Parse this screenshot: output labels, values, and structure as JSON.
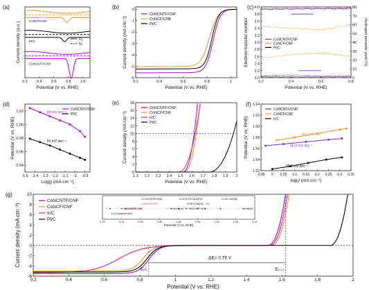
{
  "colors": {
    "purple": "#b000e0",
    "orange": "#e8952a",
    "black": "#000000",
    "magenta": "#e0207a",
    "gray": "#4a4a4a",
    "green": "#2e8b2e",
    "violet": "#7030d0"
  },
  "chart_data": [
    {
      "id": "a",
      "panel_label": "(a)",
      "type": "line",
      "xlabel": "Potential (V vs. RHE)",
      "ylabel": "Current density (a.u.)",
      "xlim": [
        0.2,
        1.1
      ],
      "xticks": [
        "0.2",
        "0.4",
        "0.6",
        "0.8",
        "1.0"
      ],
      "grid": false,
      "legend": [
        "O₂",
        "N₂"
      ],
      "curve_labels": [
        "CoNCF/CNF",
        "Pt/C",
        "CoNCNTF/CNF"
      ],
      "series": [
        {
          "name": "CoNCF/CNF",
          "color": "orange",
          "level": 0.88,
          "peak_x": 0.78,
          "peak_depth": 0.07
        },
        {
          "name": "Pt/C",
          "color": "black",
          "level": 0.6,
          "peak_x": 0.75,
          "peak_depth": 0.06
        },
        {
          "name": "CoNCNTF/CNF",
          "color": "purple",
          "level": 0.3,
          "peak_x": 0.84,
          "peak_depth": 0.28
        }
      ]
    },
    {
      "id": "b",
      "panel_label": "(b)",
      "type": "line",
      "xlabel": "Potential (V vs. RHE)",
      "ylabel": "Current density (mA cm⁻²)",
      "xlim": [
        0.2,
        1.05
      ],
      "ylim": [
        -6,
        0.2
      ],
      "xticks": [
        0.2,
        0.4,
        0.6,
        0.8,
        1.0
      ],
      "yticks": [
        0,
        -1,
        -2,
        -3,
        -4,
        -5,
        -6
      ],
      "legend": [
        "CoNCNTF/CNF",
        "CoNCF/CNF",
        "Pt/C"
      ],
      "series": [
        {
          "name": "CoNCNTF/CNF",
          "color": "purple",
          "limit": -5.55,
          "e_half": 0.85,
          "width": 0.03
        },
        {
          "name": "CoNCF/CNF",
          "color": "orange",
          "limit": -5.0,
          "e_half": 0.82,
          "width": 0.035
        },
        {
          "name": "Pt/C",
          "color": "black",
          "limit": -5.2,
          "e_half": 0.84,
          "width": 0.028
        }
      ]
    },
    {
      "id": "c",
      "panel_label": "(c)",
      "type": "line",
      "xlabel": "Potential (V vs. RHE)",
      "ylabel": "Electron transfer number",
      "y2label": "Hydrogen peroxide yield (%)",
      "xlim": [
        0.2,
        0.8
      ],
      "ylim": [
        2.0,
        4.0
      ],
      "y2lim": [
        0,
        80
      ],
      "xticks": [
        0.2,
        0.4,
        0.6,
        0.8
      ],
      "yticks": [
        2.0,
        2.2,
        2.4,
        2.6,
        2.8,
        3.0,
        3.2,
        3.4,
        3.6,
        3.8,
        4.0
      ],
      "y2ticks": [
        0,
        10,
        20,
        30,
        40,
        50,
        60,
        70,
        80
      ],
      "legend": [
        "CoNCNTF/CNF",
        "CoNCF/CNF",
        "Pt/C"
      ],
      "series": [
        {
          "name": "CoNCNTF/CNF n",
          "color": "purple",
          "y": [
            3.95,
            3.96,
            3.96,
            3.97
          ]
        },
        {
          "name": "Pt/C n",
          "color": "black",
          "y": [
            3.93,
            3.94,
            3.95,
            3.95
          ]
        },
        {
          "name": "CoNCF/CNF n",
          "color": "orange",
          "y": [
            3.45,
            3.4,
            3.35,
            3.5
          ]
        },
        {
          "name": "CoNCF/CNF H2O2",
          "color": "orange",
          "y2": [
            22,
            26,
            28,
            24
          ]
        },
        {
          "name": "CoNCNTF/CNF H2O2",
          "color": "purple",
          "y2": [
            2,
            3,
            2,
            2
          ]
        },
        {
          "name": "Pt/C H2O2",
          "color": "black",
          "y2": [
            1,
            1,
            1,
            1
          ]
        }
      ]
    },
    {
      "id": "d",
      "panel_label": "(d)",
      "type": "line",
      "xlabel": "Log|j| (mA cm⁻²)",
      "ylabel": "Potential (V vs. RHE)",
      "xlim": [
        -1.5,
        -0.85
      ],
      "ylim": [
        0.93,
        1.03
      ],
      "xticks": [
        -1.5,
        -1.4,
        -1.3,
        -1.2,
        -1.1,
        -1.0,
        -0.9
      ],
      "yticks": [
        0.94,
        0.96,
        0.98,
        1.0,
        1.02
      ],
      "legend": [
        "CoNCNTF/CNF",
        "Pt/C"
      ],
      "annotations": [
        "59 mV dec⁻¹",
        "60 mV dec⁻¹"
      ],
      "series": [
        {
          "name": "CoNCNTF/CNF",
          "color": "purple",
          "x": [
            -1.45,
            -1.35,
            -1.25,
            -1.15,
            -1.05,
            -0.95,
            -0.9
          ],
          "y": [
            1.024,
            1.018,
            1.012,
            1.006,
            1.0,
            0.99,
            0.982
          ]
        },
        {
          "name": "Pt/C",
          "color": "black",
          "x": [
            -1.45,
            -1.35,
            -1.25,
            -1.15,
            -1.05,
            -0.95,
            -0.9
          ],
          "y": [
            0.979,
            0.974,
            0.969,
            0.963,
            0.957,
            0.951,
            0.948
          ]
        }
      ]
    },
    {
      "id": "e",
      "panel_label": "(e)",
      "type": "line",
      "xlabel": "Potential (V vs. RHE)",
      "ylabel": "Current density (mA cm⁻²)",
      "xlim": [
        1.1,
        2.0
      ],
      "ylim": [
        0,
        18
      ],
      "xticks": [
        1.1,
        1.2,
        1.3,
        1.4,
        1.5,
        1.6,
        1.7,
        1.8,
        1.9,
        2.0
      ],
      "yticks": [
        0,
        2,
        4,
        6,
        8,
        10,
        12,
        14,
        16,
        18
      ],
      "reference_y": 10,
      "legend": [
        "CoNCNTF/CNF",
        "CoNCF/CNF",
        "Ir/C",
        "Pt/C"
      ],
      "series": [
        {
          "name": "CoNCNTF/CNF",
          "color": "purple",
          "onset": 1.52,
          "e10": 1.62
        },
        {
          "name": "CoNCF/CNF",
          "color": "orange",
          "onset": 1.53,
          "e10": 1.64
        },
        {
          "name": "Ir/C",
          "color": "magenta",
          "onset": 1.48,
          "e10": 1.63
        },
        {
          "name": "Pt/C",
          "color": "black",
          "onset": 1.75,
          "e10": 1.97
        }
      ]
    },
    {
      "id": "f",
      "panel_label": "(f)",
      "type": "line",
      "xlabel": "log|J (mA cm⁻²)",
      "ylabel": "Potential (V vs. RHE)",
      "xlim": [
        -0.05,
        0.35
      ],
      "ylim": [
        1.52,
        1.64
      ],
      "xticks": [
        -0.05,
        0.0,
        0.05,
        0.1,
        0.15,
        0.2,
        0.25,
        0.3,
        0.35
      ],
      "yticks": [
        1.52,
        1.54,
        1.56,
        1.58,
        1.6,
        1.62,
        1.64
      ],
      "legend": [
        "CoNCNTF/CNF",
        "CoNCF/CNF",
        "Ir/C"
      ],
      "annotations": [
        "69.6 mV dec⁻¹",
        "66.8 mV dec⁻¹",
        "75.3 mV dec⁻¹"
      ],
      "series": [
        {
          "name": "CoNCNTF/CNF",
          "color": "violet",
          "x": [
            -0.03,
            0.05,
            0.15,
            0.25,
            0.31
          ],
          "y": [
            1.565,
            1.568,
            1.572,
            1.576,
            1.578
          ]
        },
        {
          "name": "CoNCF/CNF",
          "color": "orange",
          "x": [
            0.02,
            0.1,
            0.2,
            0.3,
            0.33
          ],
          "y": [
            1.575,
            1.58,
            1.587,
            1.594,
            1.596
          ]
        },
        {
          "name": "Ir/C",
          "color": "black",
          "x": [
            -0.0,
            0.08,
            0.16,
            0.24,
            0.31
          ],
          "y": [
            1.523,
            1.528,
            1.534,
            1.54,
            1.544
          ]
        }
      ]
    },
    {
      "id": "g",
      "panel_label": "(g)",
      "type": "line",
      "xlabel": "Potential (V vs. RHE)",
      "ylabel": "Current density (mA cm⁻²)",
      "xlim": [
        0.2,
        2.0
      ],
      "ylim": [
        -6,
        10
      ],
      "xticks": [
        0.2,
        0.4,
        0.6,
        0.8,
        1.0,
        1.2,
        1.4,
        1.6,
        1.8,
        2.0
      ],
      "yticks": [
        -6,
        -4,
        -2,
        0,
        2,
        4,
        6,
        8,
        10
      ],
      "legend": [
        "CoNCNTF/CNF",
        "CoNCF/CNF",
        "Ir/C",
        "Pt/C"
      ],
      "annotations": [
        "ΔE= 0.76 V",
        "E₁/₂",
        "Eⱼ₌₁₀"
      ],
      "series": [
        {
          "name": "CoNCNTF/CNF",
          "color": "purple",
          "orr_limit": -5.5,
          "e_half": 0.85,
          "oer_e10": 1.62
        },
        {
          "name": "CoNCF/CNF",
          "color": "orange",
          "orr_limit": -5.0,
          "e_half": 0.82,
          "oer_e10": 1.64
        },
        {
          "name": "Ir/C",
          "color": "magenta",
          "orr_limit": -5.3,
          "e_half": 0.68,
          "oer_e10": 1.63
        },
        {
          "name": "Pt/C",
          "color": "black",
          "orr_limit": -5.2,
          "e_half": 0.84,
          "oer_e10": 1.97
        }
      ],
      "inset": {
        "xlim": [
          0.7,
          1.1
        ],
        "xticks": [
          "0.70",
          "0.75",
          "0.80",
          "0.85",
          "0.90",
          "0.95",
          "1.00",
          "1.05",
          "1.10"
        ],
        "xlabel": "Potential (V vs. RHE)",
        "points": [
          {
            "label": "Co-N/CNF/RGO[48]",
            "x": 0.8,
            "row": 0
          },
          {
            "label": "CoNCNTF/CNF",
            "x": 0.8,
            "row": 1
          },
          {
            "label": "N-GCNT/FeCo[42]",
            "x": 0.9,
            "row": 0
          },
          {
            "label": "Pt/C",
            "x": 0.95,
            "row": 0
          },
          {
            "label": "Co-N/C-800[45]",
            "x": 1.01,
            "row": 0
          },
          {
            "label": "CoNCF/CNF",
            "x": 0.75,
            "row": 2
          },
          {
            "label": "Co-N/C-800[47]",
            "x": 0.76,
            "row": 2
          },
          {
            "label": "CoNₓ/C[46]",
            "x": 0.88,
            "row": 2
          },
          {
            "label": "NCNF/CoNi[44]",
            "x": 0.92,
            "row": 1
          },
          {
            "label": "NiCo/PFC[19]",
            "x": 0.93,
            "row": 2
          },
          {
            "label": "Ir/C",
            "x": 0.97,
            "row": 1
          },
          {
            "label": "CoN[43]",
            "x": 1.07,
            "row": 2
          },
          {
            "label": "Co₃O₄/graphene[40]",
            "x": 0.72,
            "row": 3
          }
        ]
      }
    }
  ]
}
